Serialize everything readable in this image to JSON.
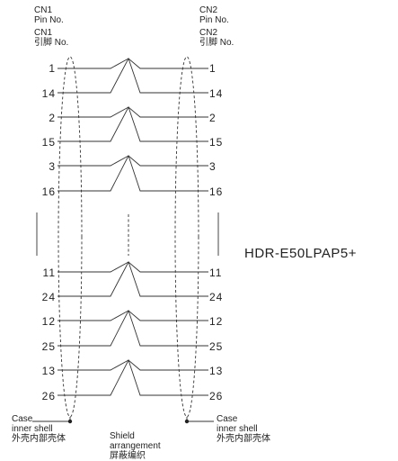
{
  "left_header": {
    "line1": "CN1",
    "line2": "Pin No.",
    "line3": "CN1",
    "line4": "引脚 No."
  },
  "right_header": {
    "line1": "CN2",
    "line2": "Pin No.",
    "line3": "CN2",
    "line4": "引脚 No."
  },
  "model_name": "HDR-E50LPAP5+",
  "pin_pairs": [
    {
      "left": [
        "1",
        "14"
      ],
      "right": [
        "1",
        "14"
      ]
    },
    {
      "left": [
        "2",
        "15"
      ],
      "right": [
        "2",
        "15"
      ]
    },
    {
      "left": [
        "3",
        "16"
      ],
      "right": [
        "3",
        "16"
      ]
    },
    {
      "left": [
        "11",
        "24"
      ],
      "right": [
        "11",
        "24"
      ]
    },
    {
      "left": [
        "12",
        "25"
      ],
      "right": [
        "12",
        "25"
      ]
    },
    {
      "left": [
        "13",
        "26"
      ],
      "right": [
        "13",
        "26"
      ]
    }
  ],
  "left_case": {
    "line1": "Case",
    "line2": "inner shell",
    "line3": "外壳内部壳体"
  },
  "right_case": {
    "line1": "Case",
    "line2": "inner shell",
    "line3": "外壳内部壳体"
  },
  "shield": {
    "line1": "Shield",
    "line2": "arrangement",
    "line3": "屏蔽编织"
  }
}
